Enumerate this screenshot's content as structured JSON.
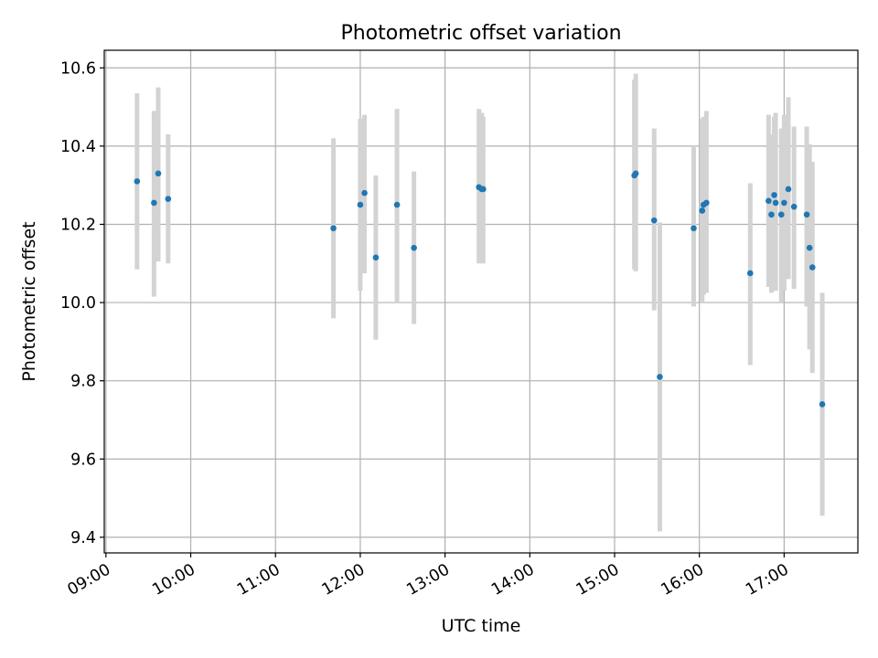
{
  "chart_data": {
    "type": "scatter",
    "title": "Photometric offset variation",
    "xlabel": "UTC time",
    "ylabel": "Photometric offset",
    "x_unit": "hour",
    "xlim": [
      8.98,
      17.87
    ],
    "ylim": [
      9.36,
      10.645
    ],
    "xticks": [
      9,
      10,
      11,
      12,
      13,
      14,
      15,
      16,
      17
    ],
    "xtick_labels": [
      "09:00",
      "10:00",
      "11:00",
      "12:00",
      "13:00",
      "14:00",
      "15:00",
      "16:00",
      "17:00"
    ],
    "yticks": [
      9.4,
      9.6,
      9.8,
      10.0,
      10.2,
      10.4,
      10.6
    ],
    "ytick_labels": [
      "9.4",
      "9.6",
      "9.8",
      "10.0",
      "10.2",
      "10.4",
      "10.6"
    ],
    "grid": true,
    "point_color": "#1f77b4",
    "errorbar_color": "#d3d3d3",
    "points": [
      {
        "t": "09:22",
        "y": 10.31,
        "ylo": 10.085,
        "yhi": 10.535
      },
      {
        "t": "09:34",
        "y": 10.255,
        "ylo": 10.015,
        "yhi": 10.49
      },
      {
        "t": "09:37",
        "y": 10.33,
        "ylo": 10.105,
        "yhi": 10.55
      },
      {
        "t": "09:44",
        "y": 10.265,
        "ylo": 10.1,
        "yhi": 10.43
      },
      {
        "t": "11:41",
        "y": 10.19,
        "ylo": 9.96,
        "yhi": 10.42
      },
      {
        "t": "12:00",
        "y": 10.25,
        "ylo": 10.03,
        "yhi": 10.47
      },
      {
        "t": "12:03",
        "y": 10.28,
        "ylo": 10.075,
        "yhi": 10.48
      },
      {
        "t": "12:11",
        "y": 10.115,
        "ylo": 9.905,
        "yhi": 10.325
      },
      {
        "t": "12:26",
        "y": 10.25,
        "ylo": 10.0,
        "yhi": 10.495
      },
      {
        "t": "12:38",
        "y": 10.14,
        "ylo": 9.945,
        "yhi": 10.335
      },
      {
        "t": "13:24",
        "y": 10.295,
        "ylo": 10.1,
        "yhi": 10.495
      },
      {
        "t": "13:26",
        "y": 10.29,
        "ylo": 10.105,
        "yhi": 10.485
      },
      {
        "t": "13:27",
        "y": 10.29,
        "ylo": 10.1,
        "yhi": 10.475
      },
      {
        "t": "15:14",
        "y": 10.325,
        "ylo": 10.085,
        "yhi": 10.57
      },
      {
        "t": "15:15",
        "y": 10.33,
        "ylo": 10.08,
        "yhi": 10.585
      },
      {
        "t": "15:28",
        "y": 10.21,
        "ylo": 9.98,
        "yhi": 10.445
      },
      {
        "t": "15:32",
        "y": 9.81,
        "ylo": 9.415,
        "yhi": 10.205
      },
      {
        "t": "15:56",
        "y": 10.19,
        "ylo": 9.99,
        "yhi": 10.4
      },
      {
        "t": "16:02",
        "y": 10.235,
        "ylo": 10.0,
        "yhi": 10.47
      },
      {
        "t": "16:03",
        "y": 10.25,
        "ylo": 10.02,
        "yhi": 10.475
      },
      {
        "t": "16:05",
        "y": 10.255,
        "ylo": 10.025,
        "yhi": 10.49
      },
      {
        "t": "16:36",
        "y": 10.075,
        "ylo": 9.84,
        "yhi": 10.305
      },
      {
        "t": "16:49",
        "y": 10.26,
        "ylo": 10.04,
        "yhi": 10.48
      },
      {
        "t": "16:51",
        "y": 10.225,
        "ylo": 10.025,
        "yhi": 10.43
      },
      {
        "t": "16:53",
        "y": 10.275,
        "ylo": 10.06,
        "yhi": 10.475
      },
      {
        "t": "16:54",
        "y": 10.255,
        "ylo": 10.03,
        "yhi": 10.485
      },
      {
        "t": "16:58",
        "y": 10.225,
        "ylo": 10.0,
        "yhi": 10.445
      },
      {
        "t": "17:00",
        "y": 10.255,
        "ylo": 10.03,
        "yhi": 10.48
      },
      {
        "t": "17:03",
        "y": 10.29,
        "ylo": 10.06,
        "yhi": 10.525
      },
      {
        "t": "17:07",
        "y": 10.245,
        "ylo": 10.035,
        "yhi": 10.45
      },
      {
        "t": "17:16",
        "y": 10.225,
        "ylo": 9.99,
        "yhi": 10.45
      },
      {
        "t": "17:18",
        "y": 10.14,
        "ylo": 9.88,
        "yhi": 10.405
      },
      {
        "t": "17:20",
        "y": 10.09,
        "ylo": 9.82,
        "yhi": 10.36
      },
      {
        "t": "17:27",
        "y": 9.74,
        "ylo": 9.455,
        "yhi": 10.025
      }
    ]
  }
}
